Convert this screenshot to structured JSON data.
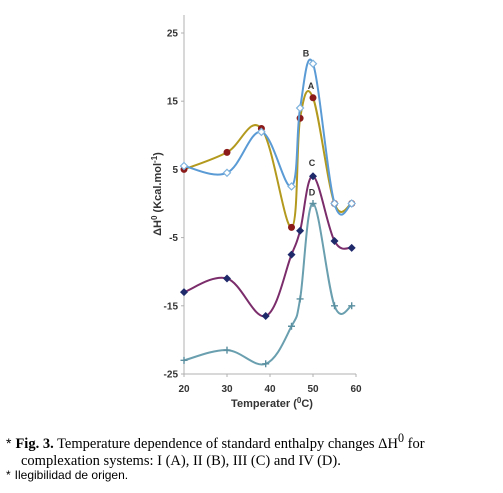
{
  "chart_data": {
    "type": "line",
    "xlabel": "Temperater (",
    "xlabel_unit": "C)",
    "xlabel_sup": "0",
    "ylabel": "ΔH",
    "ylabel_sup": "0",
    "ylabel_unit": " (Kcal.mol",
    "ylabel_unit_sup": "-1",
    "ylabel_end": ")",
    "xlim": [
      20,
      60
    ],
    "ylim": [
      -25,
      25
    ],
    "x_ticks": [
      "20",
      "30",
      "40",
      "50",
      "60"
    ],
    "y_ticks": [
      "25",
      "15",
      "5",
      "-5",
      "-15",
      "-25"
    ],
    "grid": false,
    "series": [
      {
        "name": "A",
        "color": "#b39a1e",
        "marker_color": "#8b1a1a",
        "marker": "circle",
        "x": [
          20,
          30,
          38,
          45,
          47,
          50,
          55,
          59
        ],
        "y": [
          5,
          7.5,
          11,
          -3.5,
          12.5,
          15.5,
          0,
          0
        ]
      },
      {
        "name": "B",
        "color": "#5b9bd5",
        "marker_color": "#7fb3dd",
        "marker": "diamond-open",
        "x": [
          20,
          30,
          38,
          45,
          47,
          50,
          55,
          59
        ],
        "y": [
          5.5,
          4.5,
          10.5,
          2.5,
          14,
          20.5,
          0,
          0
        ]
      },
      {
        "name": "C",
        "color": "#7b2d6b",
        "marker_color": "#1f2a6b",
        "marker": "diamond",
        "x": [
          20,
          30,
          39,
          45,
          47,
          50,
          55,
          59
        ],
        "y": [
          -13,
          -11,
          -16.5,
          -7.5,
          -4,
          4,
          -5.5,
          -6.5
        ]
      },
      {
        "name": "D",
        "color": "#6a9faf",
        "marker_color": "#5a8fa0",
        "marker": "plus",
        "x": [
          20,
          30,
          39,
          45,
          47,
          50,
          55,
          59
        ],
        "y": [
          -23,
          -21.5,
          -23.5,
          -18,
          -14,
          0,
          -15,
          -15
        ]
      }
    ]
  },
  "caption": {
    "star": "*",
    "fig_label": "Fig. 3.",
    "text_before": " Temperature dependence of standard enthalpy changes ΔH",
    "text_sup": "0",
    "text_after": " for",
    "line2": "complexation systems: I (A), II (B), III (C) and IV (D).",
    "note_star": "*",
    "note": "Ilegibilidad de origen."
  }
}
